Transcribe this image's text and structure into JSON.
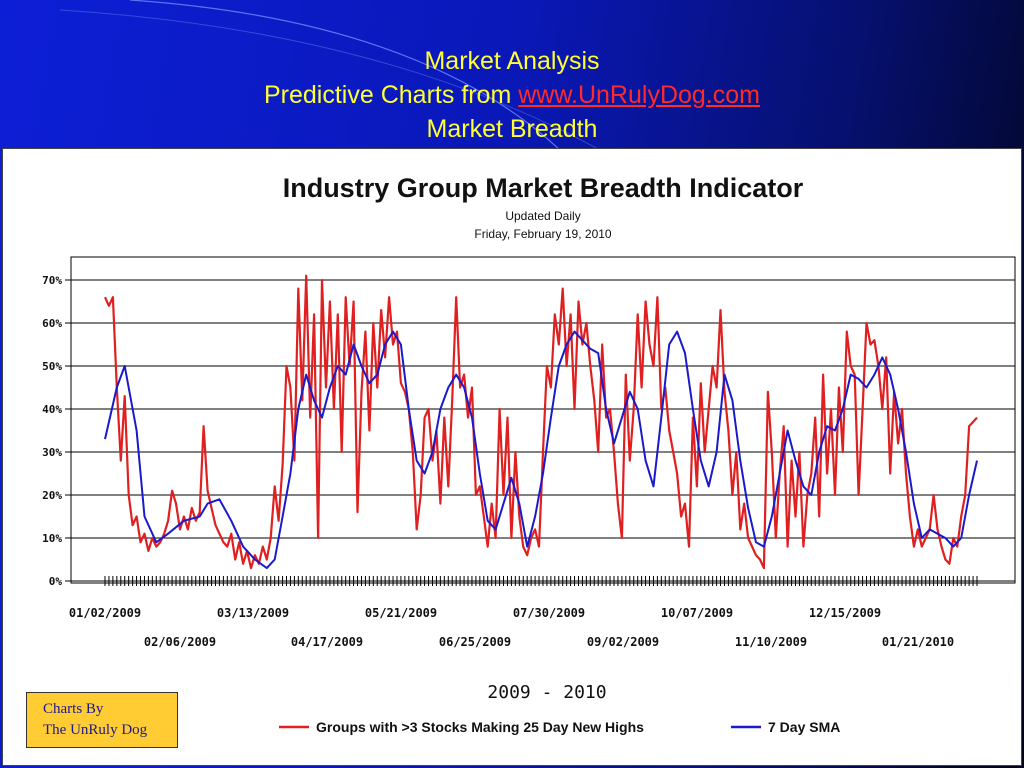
{
  "slide": {
    "title_line1": "Market Analysis",
    "title_line2_prefix": "Predictive Charts from ",
    "title_link": "www.UnRulyDog.com",
    "title_line3": "Market Breadth"
  },
  "credit": {
    "line1": "Charts By",
    "line2": "The UnRuly Dog"
  },
  "colors": {
    "series_red": "#e02020",
    "series_blue": "#1a1acc",
    "title_yellow": "#ffff33",
    "link_red": "#ff2a2a",
    "credit_bg": "#ffcc33"
  },
  "chart_data": {
    "type": "line",
    "title": "Industry Group Market Breadth Indicator",
    "subtitle": "Updated Daily",
    "date_line": "Friday, February 19, 2010",
    "xlabel": "2009 - 2010",
    "y_ticks": [
      "0%",
      "10%",
      "20%",
      "30%",
      "40%",
      "50%",
      "60%",
      "70%"
    ],
    "ylim": [
      0,
      75
    ],
    "grid": true,
    "legend_position": "bottom",
    "x_ticks_row1": [
      "01/02/2009",
      "03/13/2009",
      "05/21/2009",
      "07/30/2009",
      "10/07/2009",
      "12/15/2009"
    ],
    "x_ticks_row2": [
      "02/06/2009",
      "04/17/2009",
      "06/25/2009",
      "09/02/2009",
      "11/10/2009",
      "01/21/2010"
    ],
    "series": [
      {
        "name": "Groups with >3 Stocks Making 25 Day New Highs",
        "color": "#e02020",
        "points": [
          [
            0,
            66
          ],
          [
            1,
            64
          ],
          [
            2,
            66
          ],
          [
            3,
            45
          ],
          [
            4,
            28
          ],
          [
            5,
            43
          ],
          [
            6,
            20
          ],
          [
            7,
            13
          ],
          [
            8,
            15
          ],
          [
            9,
            9
          ],
          [
            10,
            11
          ],
          [
            11,
            7
          ],
          [
            12,
            10
          ],
          [
            13,
            8
          ],
          [
            14,
            9
          ],
          [
            15,
            11
          ],
          [
            16,
            14
          ],
          [
            17,
            21
          ],
          [
            18,
            18
          ],
          [
            19,
            12
          ],
          [
            20,
            15
          ],
          [
            21,
            12
          ],
          [
            22,
            17
          ],
          [
            23,
            14
          ],
          [
            24,
            16
          ],
          [
            25,
            36
          ],
          [
            26,
            21
          ],
          [
            27,
            17
          ],
          [
            28,
            13
          ],
          [
            29,
            11
          ],
          [
            30,
            9
          ],
          [
            31,
            8
          ],
          [
            32,
            11
          ],
          [
            33,
            5
          ],
          [
            34,
            9
          ],
          [
            35,
            4
          ],
          [
            36,
            7
          ],
          [
            37,
            3
          ],
          [
            38,
            6
          ],
          [
            39,
            4
          ],
          [
            40,
            8
          ],
          [
            41,
            5
          ],
          [
            42,
            10
          ],
          [
            43,
            22
          ],
          [
            44,
            14
          ],
          [
            45,
            27
          ],
          [
            46,
            50
          ],
          [
            47,
            45
          ],
          [
            48,
            28
          ],
          [
            49,
            68
          ],
          [
            50,
            42
          ],
          [
            51,
            71
          ],
          [
            52,
            38
          ],
          [
            53,
            62
          ],
          [
            54,
            10
          ],
          [
            55,
            70
          ],
          [
            56,
            45
          ],
          [
            57,
            65
          ],
          [
            58,
            40
          ],
          [
            59,
            62
          ],
          [
            60,
            30
          ],
          [
            61,
            66
          ],
          [
            62,
            50
          ],
          [
            63,
            65
          ],
          [
            64,
            16
          ],
          [
            65,
            44
          ],
          [
            66,
            58
          ],
          [
            67,
            35
          ],
          [
            68,
            60
          ],
          [
            69,
            45
          ],
          [
            70,
            63
          ],
          [
            71,
            52
          ],
          [
            72,
            66
          ],
          [
            73,
            55
          ],
          [
            74,
            58
          ],
          [
            75,
            46
          ],
          [
            76,
            44
          ],
          [
            77,
            40
          ],
          [
            78,
            30
          ],
          [
            79,
            12
          ],
          [
            80,
            20
          ],
          [
            81,
            38
          ],
          [
            82,
            40
          ],
          [
            83,
            28
          ],
          [
            84,
            35
          ],
          [
            85,
            18
          ],
          [
            86,
            38
          ],
          [
            87,
            22
          ],
          [
            88,
            42
          ],
          [
            89,
            66
          ],
          [
            90,
            45
          ],
          [
            91,
            48
          ],
          [
            92,
            38
          ],
          [
            93,
            45
          ],
          [
            94,
            20
          ],
          [
            95,
            22
          ],
          [
            96,
            15
          ],
          [
            97,
            8
          ],
          [
            98,
            18
          ],
          [
            99,
            10
          ],
          [
            100,
            40
          ],
          [
            101,
            20
          ],
          [
            102,
            38
          ],
          [
            103,
            10
          ],
          [
            104,
            30
          ],
          [
            105,
            15
          ],
          [
            106,
            8
          ],
          [
            107,
            6
          ],
          [
            108,
            10
          ],
          [
            109,
            12
          ],
          [
            110,
            8
          ],
          [
            111,
            30
          ],
          [
            112,
            50
          ],
          [
            113,
            45
          ],
          [
            114,
            62
          ],
          [
            115,
            55
          ],
          [
            116,
            68
          ],
          [
            117,
            50
          ],
          [
            118,
            62
          ],
          [
            119,
            40
          ],
          [
            120,
            65
          ],
          [
            121,
            55
          ],
          [
            122,
            60
          ],
          [
            123,
            50
          ],
          [
            124,
            42
          ],
          [
            125,
            30
          ],
          [
            126,
            55
          ],
          [
            127,
            38
          ],
          [
            128,
            40
          ],
          [
            129,
            30
          ],
          [
            130,
            18
          ],
          [
            131,
            10
          ],
          [
            132,
            48
          ],
          [
            133,
            28
          ],
          [
            134,
            40
          ],
          [
            135,
            62
          ],
          [
            136,
            45
          ],
          [
            137,
            65
          ],
          [
            138,
            55
          ],
          [
            139,
            50
          ],
          [
            140,
            66
          ],
          [
            141,
            40
          ],
          [
            142,
            45
          ],
          [
            143,
            35
          ],
          [
            144,
            30
          ],
          [
            145,
            25
          ],
          [
            146,
            15
          ],
          [
            147,
            18
          ],
          [
            148,
            8
          ],
          [
            149,
            38
          ],
          [
            150,
            22
          ],
          [
            151,
            46
          ],
          [
            152,
            30
          ],
          [
            153,
            40
          ],
          [
            154,
            50
          ],
          [
            155,
            45
          ],
          [
            156,
            63
          ],
          [
            157,
            44
          ],
          [
            158,
            35
          ],
          [
            159,
            20
          ],
          [
            160,
            30
          ],
          [
            161,
            12
          ],
          [
            162,
            18
          ],
          [
            163,
            10
          ],
          [
            164,
            8
          ],
          [
            165,
            6
          ],
          [
            166,
            5
          ],
          [
            167,
            3
          ],
          [
            168,
            44
          ],
          [
            169,
            30
          ],
          [
            170,
            10
          ],
          [
            171,
            25
          ],
          [
            172,
            36
          ],
          [
            173,
            8
          ],
          [
            174,
            28
          ],
          [
            175,
            15
          ],
          [
            176,
            30
          ],
          [
            177,
            8
          ],
          [
            178,
            20
          ],
          [
            179,
            25
          ],
          [
            180,
            38
          ],
          [
            181,
            15
          ],
          [
            182,
            48
          ],
          [
            183,
            25
          ],
          [
            184,
            40
          ],
          [
            185,
            20
          ],
          [
            186,
            45
          ],
          [
            187,
            30
          ],
          [
            188,
            58
          ],
          [
            189,
            50
          ],
          [
            190,
            48
          ],
          [
            191,
            20
          ],
          [
            192,
            40
          ],
          [
            193,
            60
          ],
          [
            194,
            55
          ],
          [
            195,
            56
          ],
          [
            196,
            50
          ],
          [
            197,
            40
          ],
          [
            198,
            52
          ],
          [
            199,
            25
          ],
          [
            200,
            44
          ],
          [
            201,
            32
          ],
          [
            202,
            40
          ],
          [
            203,
            25
          ],
          [
            204,
            15
          ],
          [
            205,
            8
          ],
          [
            206,
            12
          ],
          [
            207,
            8
          ],
          [
            208,
            10
          ],
          [
            209,
            12
          ],
          [
            210,
            20
          ],
          [
            211,
            12
          ],
          [
            212,
            8
          ],
          [
            213,
            5
          ],
          [
            214,
            4
          ],
          [
            215,
            10
          ],
          [
            216,
            8
          ],
          [
            217,
            15
          ],
          [
            218,
            20
          ],
          [
            219,
            36
          ],
          [
            220,
            37
          ],
          [
            221,
            38
          ]
        ]
      },
      {
        "name": "7 Day SMA",
        "color": "#1a1acc",
        "points": [
          [
            0,
            33
          ],
          [
            3,
            45
          ],
          [
            5,
            50
          ],
          [
            8,
            35
          ],
          [
            10,
            15
          ],
          [
            13,
            9
          ],
          [
            16,
            11
          ],
          [
            20,
            14
          ],
          [
            24,
            15
          ],
          [
            26,
            18
          ],
          [
            29,
            19
          ],
          [
            32,
            14
          ],
          [
            35,
            8
          ],
          [
            38,
            5
          ],
          [
            41,
            3
          ],
          [
            43,
            5
          ],
          [
            45,
            15
          ],
          [
            47,
            25
          ],
          [
            49,
            40
          ],
          [
            51,
            48
          ],
          [
            53,
            42
          ],
          [
            55,
            38
          ],
          [
            57,
            45
          ],
          [
            59,
            50
          ],
          [
            61,
            48
          ],
          [
            63,
            55
          ],
          [
            65,
            50
          ],
          [
            67,
            46
          ],
          [
            69,
            48
          ],
          [
            71,
            55
          ],
          [
            73,
            58
          ],
          [
            75,
            55
          ],
          [
            77,
            40
          ],
          [
            79,
            28
          ],
          [
            81,
            25
          ],
          [
            83,
            30
          ],
          [
            85,
            40
          ],
          [
            87,
            45
          ],
          [
            89,
            48
          ],
          [
            91,
            45
          ],
          [
            93,
            38
          ],
          [
            95,
            25
          ],
          [
            97,
            14
          ],
          [
            99,
            12
          ],
          [
            101,
            18
          ],
          [
            103,
            24
          ],
          [
            105,
            18
          ],
          [
            107,
            8
          ],
          [
            109,
            15
          ],
          [
            111,
            25
          ],
          [
            113,
            38
          ],
          [
            115,
            50
          ],
          [
            117,
            55
          ],
          [
            119,
            58
          ],
          [
            121,
            56
          ],
          [
            123,
            54
          ],
          [
            125,
            53
          ],
          [
            127,
            40
          ],
          [
            129,
            32
          ],
          [
            131,
            38
          ],
          [
            133,
            44
          ],
          [
            135,
            40
          ],
          [
            137,
            28
          ],
          [
            139,
            22
          ],
          [
            141,
            38
          ],
          [
            143,
            55
          ],
          [
            145,
            58
          ],
          [
            147,
            53
          ],
          [
            149,
            40
          ],
          [
            151,
            28
          ],
          [
            153,
            22
          ],
          [
            155,
            30
          ],
          [
            157,
            48
          ],
          [
            159,
            42
          ],
          [
            161,
            28
          ],
          [
            163,
            17
          ],
          [
            165,
            9
          ],
          [
            167,
            8
          ],
          [
            169,
            15
          ],
          [
            171,
            25
          ],
          [
            173,
            35
          ],
          [
            175,
            28
          ],
          [
            177,
            22
          ],
          [
            179,
            20
          ],
          [
            181,
            30
          ],
          [
            183,
            36
          ],
          [
            185,
            35
          ],
          [
            187,
            40
          ],
          [
            189,
            48
          ],
          [
            191,
            47
          ],
          [
            193,
            45
          ],
          [
            195,
            48
          ],
          [
            197,
            52
          ],
          [
            199,
            48
          ],
          [
            201,
            40
          ],
          [
            203,
            30
          ],
          [
            205,
            18
          ],
          [
            207,
            10
          ],
          [
            209,
            12
          ],
          [
            211,
            11
          ],
          [
            213,
            10
          ],
          [
            215,
            8
          ],
          [
            217,
            10
          ],
          [
            219,
            20
          ],
          [
            221,
            28
          ]
        ]
      }
    ]
  }
}
